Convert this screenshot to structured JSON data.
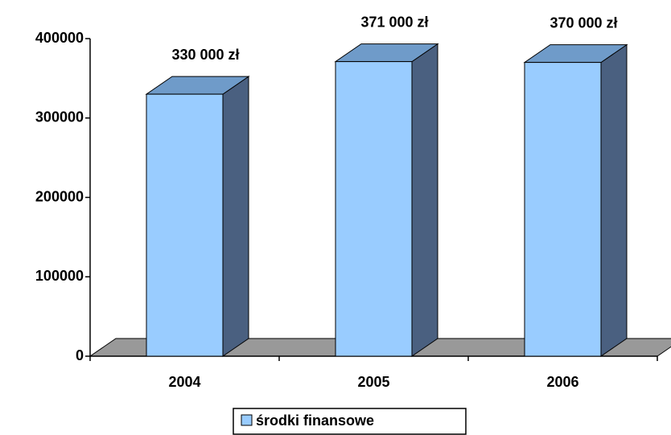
{
  "chart_data": {
    "type": "bar3d",
    "categories": [
      "2004",
      "2005",
      "2006"
    ],
    "series": [
      {
        "name": "środki finansowe",
        "color": "#99ccff",
        "values": [
          330000,
          371000,
          370000
        ],
        "value_labels": [
          "330 000 zł",
          "371 000 zł",
          "370 000 zł"
        ]
      }
    ],
    "ylim": [
      0,
      400000
    ],
    "yticks": [
      0,
      100000,
      200000,
      300000,
      400000
    ],
    "legend": "bottom"
  }
}
